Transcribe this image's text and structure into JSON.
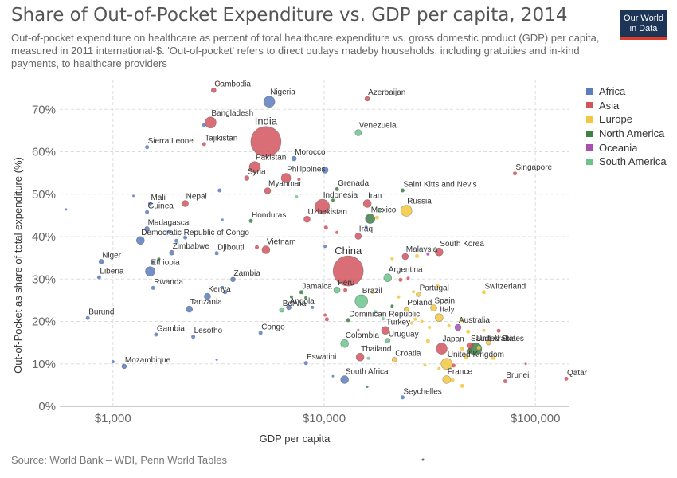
{
  "header": {
    "title": "Share of Out-of-Pocket Expenditure vs. GDP per capita, 2014",
    "subtitle": "Out-of-pocket expenditure on healthcare as percent of total healthcare expenditure vs. gross domestic product (GDP) per capita, measured in 2011 international-$. 'Out-of-pocket' refers to direct outlays madeby households, including gratuities and in-kind payments, to healthcare providers",
    "logo_line1": "Our World",
    "logo_line2": "in Data"
  },
  "footer": {
    "source": "Source: World Bank – WDI, Penn World Tables"
  },
  "colors": {
    "Africa": "#5b7cc0",
    "Asia": "#d2555e",
    "Europe": "#f4c53f",
    "North America": "#3f7f48",
    "Oceania": "#a94fb0",
    "South America": "#6cc48b"
  },
  "chart_data": {
    "type": "scatter",
    "xlabel": "GDP per capita",
    "ylabel": "Out-of-Pocket as share of total expenditure (%)",
    "xscale": "log",
    "xlim": [
      560,
      145000
    ],
    "ylim": [
      0,
      77
    ],
    "xticks": [
      {
        "v": 1000,
        "label": "$1,000"
      },
      {
        "v": 10000,
        "label": "$10,000"
      },
      {
        "v": 100000,
        "label": "$100,000"
      }
    ],
    "yticks": [
      {
        "v": 0,
        "label": "0%"
      },
      {
        "v": 10,
        "label": "10%"
      },
      {
        "v": 20,
        "label": "20%"
      },
      {
        "v": 30,
        "label": "30%"
      },
      {
        "v": 40,
        "label": "40%"
      },
      {
        "v": 50,
        "label": "50%"
      },
      {
        "v": 60,
        "label": "60%"
      },
      {
        "v": 70,
        "label": "70%"
      }
    ],
    "grid": true,
    "legend_position": "right",
    "legend": [
      "Africa",
      "Asia",
      "Europe",
      "North America",
      "Oceania",
      "South America"
    ],
    "points": [
      {
        "label": "Cambodia",
        "x": 3000,
        "y": 74.5,
        "r": 3,
        "region": "Asia"
      },
      {
        "label": "Nigeria",
        "x": 5500,
        "y": 71.8,
        "r": 7,
        "region": "Africa"
      },
      {
        "label": "Azerbaijan",
        "x": 16000,
        "y": 72.5,
        "r": 3,
        "region": "Asia"
      },
      {
        "label": "Bangladesh",
        "x": 2900,
        "y": 66.9,
        "r": 7,
        "region": "Asia"
      },
      {
        "label": "India",
        "x": 5300,
        "y": 62.4,
        "r": 19,
        "region": "Asia"
      },
      {
        "label": "Venezuela",
        "x": 14500,
        "y": 64.5,
        "r": 4,
        "region": "South America"
      },
      {
        "label": "Sierra Leone",
        "x": 1450,
        "y": 61.1,
        "r": 2.5,
        "region": "Africa"
      },
      {
        "label": "Tajikistan",
        "x": 2700,
        "y": 61.8,
        "r": 2.5,
        "region": "Asia"
      },
      {
        "label": "Morocco",
        "x": 7200,
        "y": 58.4,
        "r": 3,
        "region": "Africa"
      },
      {
        "label": "Pakistan",
        "x": 4700,
        "y": 56.4,
        "r": 7,
        "region": "Asia"
      },
      {
        "label": "Syria",
        "x": 4300,
        "y": 53.8,
        "r": 3,
        "region": "Asia"
      },
      {
        "label": "Philippines",
        "x": 6600,
        "y": 53.8,
        "r": 6,
        "region": "Asia"
      },
      {
        "label": "Singapore",
        "x": 80000,
        "y": 54.9,
        "r": 2.5,
        "region": "Asia"
      },
      {
        "label": "Myanmar",
        "x": 5400,
        "y": 50.8,
        "r": 4,
        "region": "Asia"
      },
      {
        "label": "Grenada",
        "x": 11500,
        "y": 51.2,
        "r": 2.5,
        "region": "North America"
      },
      {
        "label": "Saint Kitts and Nevis",
        "x": 23500,
        "y": 50.9,
        "r": 2.5,
        "region": "North America"
      },
      {
        "label": "Indonesia",
        "x": 9800,
        "y": 47.1,
        "r": 9,
        "region": "Asia"
      },
      {
        "label": "Iran",
        "x": 16000,
        "y": 47.8,
        "r": 5,
        "region": "Asia"
      },
      {
        "label": "Mali",
        "x": 1500,
        "y": 47.8,
        "r": 2.5,
        "region": "Africa"
      },
      {
        "label": "Nepal",
        "x": 2200,
        "y": 47.8,
        "r": 4,
        "region": "Asia"
      },
      {
        "label": "Guinea",
        "x": 1450,
        "y": 45.8,
        "r": 2.5,
        "region": "Africa"
      },
      {
        "label": "Russia",
        "x": 24500,
        "y": 46.1,
        "r": 7,
        "region": "Europe"
      },
      {
        "label": "Mexico",
        "x": 16500,
        "y": 44.2,
        "r": 6,
        "region": "North America"
      },
      {
        "label": "Uzbekistan",
        "x": 8300,
        "y": 44.1,
        "r": 4,
        "region": "Asia"
      },
      {
        "label": "Honduras",
        "x": 4500,
        "y": 43.7,
        "r": 2.5,
        "region": "North America"
      },
      {
        "label": "Madagascar",
        "x": 1450,
        "y": 41.8,
        "r": 3,
        "region": "Africa"
      },
      {
        "label": "Iraq",
        "x": 14500,
        "y": 40.1,
        "r": 4,
        "region": "Asia"
      },
      {
        "label": "Democratic Republic of Congo",
        "x": 1350,
        "y": 39.1,
        "r": 5,
        "region": "Africa"
      },
      {
        "label": "Zimbabwe",
        "x": 1900,
        "y": 36.2,
        "r": 3,
        "region": "Africa"
      },
      {
        "label": "Djibouti",
        "x": 3100,
        "y": 36.1,
        "r": 2.5,
        "region": "Africa"
      },
      {
        "label": "Vietnam",
        "x": 5300,
        "y": 36.9,
        "r": 5,
        "region": "Asia"
      },
      {
        "label": "China",
        "x": 13000,
        "y": 31.9,
        "r": 19,
        "region": "Asia"
      },
      {
        "label": "Malaysia",
        "x": 24200,
        "y": 35.3,
        "r": 4,
        "region": "Asia"
      },
      {
        "label": "South Korea",
        "x": 35000,
        "y": 36.4,
        "r": 5,
        "region": "Asia"
      },
      {
        "label": "Niger",
        "x": 880,
        "y": 34.1,
        "r": 3,
        "region": "Africa"
      },
      {
        "label": "Ethiopia",
        "x": 1500,
        "y": 31.8,
        "r": 6,
        "region": "Africa"
      },
      {
        "label": "Liberia",
        "x": 860,
        "y": 30.4,
        "r": 2.5,
        "region": "Africa"
      },
      {
        "label": "Zambia",
        "x": 3700,
        "y": 29.9,
        "r": 3,
        "region": "Africa"
      },
      {
        "label": "Argentina",
        "x": 20000,
        "y": 30.3,
        "r": 5,
        "region": "South America"
      },
      {
        "label": "Rwanda",
        "x": 1550,
        "y": 27.9,
        "r": 2.5,
        "region": "Africa"
      },
      {
        "label": "Jamaica",
        "x": 7800,
        "y": 26.9,
        "r": 2.5,
        "region": "North America"
      },
      {
        "label": "Peru",
        "x": 11500,
        "y": 27.4,
        "r": 4,
        "region": "South America"
      },
      {
        "label": "Portugal",
        "x": 28000,
        "y": 26.4,
        "r": 3,
        "region": "Europe"
      },
      {
        "label": "Switzerland",
        "x": 57000,
        "y": 26.9,
        "r": 2.5,
        "region": "Europe"
      },
      {
        "label": "Kenya",
        "x": 2800,
        "y": 25.9,
        "r": 4,
        "region": "Africa"
      },
      {
        "label": "Brazil",
        "x": 15000,
        "y": 24.8,
        "r": 8,
        "region": "South America"
      },
      {
        "label": "Tanzania",
        "x": 2300,
        "y": 22.9,
        "r": 4,
        "region": "Africa"
      },
      {
        "label": "Angola",
        "x": 6800,
        "y": 23.3,
        "r": 3,
        "region": "Africa"
      },
      {
        "label": "Bolivia",
        "x": 6300,
        "y": 22.7,
        "r": 3,
        "region": "South America"
      },
      {
        "label": "Poland",
        "x": 24500,
        "y": 22.9,
        "r": 3,
        "region": "Europe"
      },
      {
        "label": "Spain",
        "x": 33000,
        "y": 23.2,
        "r": 4,
        "region": "Europe"
      },
      {
        "label": "Italy",
        "x": 35000,
        "y": 20.9,
        "r": 5,
        "region": "Europe"
      },
      {
        "label": "Dominican Republic",
        "x": 13000,
        "y": 20.3,
        "r": 2.5,
        "region": "North America"
      },
      {
        "label": "Burundi",
        "x": 760,
        "y": 20.8,
        "r": 2.5,
        "region": "Africa"
      },
      {
        "label": "Australia",
        "x": 43000,
        "y": 18.6,
        "r": 4,
        "region": "Oceania"
      },
      {
        "label": "Turkey",
        "x": 19500,
        "y": 17.9,
        "r": 5,
        "region": "Asia"
      },
      {
        "label": "Gambia",
        "x": 1600,
        "y": 16.9,
        "r": 2.5,
        "region": "Africa"
      },
      {
        "label": "Lesotho",
        "x": 2400,
        "y": 16.4,
        "r": 2.5,
        "region": "Africa"
      },
      {
        "label": "Congo",
        "x": 5000,
        "y": 17.3,
        "r": 2.5,
        "region": "Africa"
      },
      {
        "label": "Uruguay",
        "x": 20000,
        "y": 15.5,
        "r": 3,
        "region": "South America"
      },
      {
        "label": "Colombia",
        "x": 12500,
        "y": 14.8,
        "r": 5,
        "region": "South America"
      },
      {
        "label": "Saudi Arabia",
        "x": 49000,
        "y": 14.3,
        "r": 4,
        "region": "Asia"
      },
      {
        "label": "Japan",
        "x": 36000,
        "y": 13.6,
        "r": 7,
        "region": "Asia"
      },
      {
        "label": "United States",
        "x": 52000,
        "y": 13.5,
        "r": 8,
        "region": "North America"
      },
      {
        "label": "Thailand",
        "x": 14800,
        "y": 11.6,
        "r": 5,
        "region": "Asia"
      },
      {
        "label": "Croatia",
        "x": 21500,
        "y": 11.0,
        "r": 3,
        "region": "Europe"
      },
      {
        "label": "United Kingdom",
        "x": 38000,
        "y": 10.0,
        "r": 7,
        "region": "Europe"
      },
      {
        "label": "Mozambique",
        "x": 1130,
        "y": 9.4,
        "r": 3,
        "region": "Africa"
      },
      {
        "label": "Eswatini",
        "x": 8200,
        "y": 10.2,
        "r": 2.5,
        "region": "Africa"
      },
      {
        "label": "South Africa",
        "x": 12500,
        "y": 6.3,
        "r": 5,
        "region": "Africa"
      },
      {
        "label": "France",
        "x": 38000,
        "y": 6.3,
        "r": 5,
        "region": "Europe"
      },
      {
        "label": "Qatar",
        "x": 140000,
        "y": 6.5,
        "r": 2.5,
        "region": "Asia"
      },
      {
        "label": "Brunei",
        "x": 72000,
        "y": 5.9,
        "r": 2.5,
        "region": "Asia"
      },
      {
        "label": "Seychelles",
        "x": 23500,
        "y": 2.1,
        "r": 2.5,
        "region": "Africa"
      },
      {
        "label": "",
        "x": 3200,
        "y": 76.0,
        "r": 1.5,
        "region": "Asia"
      },
      {
        "label": "",
        "x": 2700,
        "y": 66.3,
        "r": 2.5,
        "region": "Africa"
      },
      {
        "label": "",
        "x": 10100,
        "y": 55.7,
        "r": 4,
        "region": "Africa"
      },
      {
        "label": "",
        "x": 7600,
        "y": 53.5,
        "r": 2,
        "region": "Asia"
      },
      {
        "label": "",
        "x": 3200,
        "y": 50.9,
        "r": 2.5,
        "region": "Africa"
      },
      {
        "label": "",
        "x": 1250,
        "y": 49.6,
        "r": 1.5,
        "region": "Africa"
      },
      {
        "label": "",
        "x": 600,
        "y": 46.4,
        "r": 1.5,
        "region": "Africa"
      },
      {
        "label": "",
        "x": 7400,
        "y": 49.4,
        "r": 2,
        "region": "South America"
      },
      {
        "label": "",
        "x": 11000,
        "y": 48.6,
        "r": 2,
        "region": "North America"
      },
      {
        "label": "",
        "x": 18200,
        "y": 46.2,
        "r": 2.5,
        "region": "South America"
      },
      {
        "label": "",
        "x": 17800,
        "y": 44.5,
        "r": 2.5,
        "region": "Europe"
      },
      {
        "label": "",
        "x": 3300,
        "y": 44.0,
        "r": 1.5,
        "region": "Africa"
      },
      {
        "label": "",
        "x": 10200,
        "y": 42.1,
        "r": 2.5,
        "region": "Asia"
      },
      {
        "label": "",
        "x": 11500,
        "y": 41.0,
        "r": 2,
        "region": "Asia"
      },
      {
        "label": "",
        "x": 15800,
        "y": 42.2,
        "r": 2,
        "region": "Africa"
      },
      {
        "label": "",
        "x": 1850,
        "y": 41.1,
        "r": 2.5,
        "region": "Africa"
      },
      {
        "label": "",
        "x": 2200,
        "y": 39.8,
        "r": 2.5,
        "region": "Africa"
      },
      {
        "label": "",
        "x": 2000,
        "y": 39.0,
        "r": 2.5,
        "region": "Africa"
      },
      {
        "label": "",
        "x": 4800,
        "y": 37.5,
        "r": 2.5,
        "region": "Asia"
      },
      {
        "label": "",
        "x": 10100,
        "y": 37.7,
        "r": 2,
        "region": "Africa"
      },
      {
        "label": "",
        "x": 21000,
        "y": 34.8,
        "r": 2,
        "region": "Europe"
      },
      {
        "label": "",
        "x": 27500,
        "y": 35.4,
        "r": 2.5,
        "region": "Europe"
      },
      {
        "label": "",
        "x": 31000,
        "y": 35.9,
        "r": 2,
        "region": "Oceania"
      },
      {
        "label": "",
        "x": 1650,
        "y": 34.7,
        "r": 2,
        "region": "North America"
      },
      {
        "label": "",
        "x": 1550,
        "y": 33.8,
        "r": 2,
        "region": "Africa"
      },
      {
        "label": "",
        "x": 3300,
        "y": 28.0,
        "r": 2,
        "region": "Africa"
      },
      {
        "label": "",
        "x": 3400,
        "y": 26.9,
        "r": 2.5,
        "region": "Africa"
      },
      {
        "label": "",
        "x": 12600,
        "y": 27.4,
        "r": 2.5,
        "region": "Asia"
      },
      {
        "label": "",
        "x": 17000,
        "y": 26.8,
        "r": 2,
        "region": "Europe"
      },
      {
        "label": "",
        "x": 23000,
        "y": 29.8,
        "r": 2.5,
        "region": "Asia"
      },
      {
        "label": "",
        "x": 25000,
        "y": 30.2,
        "r": 2,
        "region": "Asia"
      },
      {
        "label": "",
        "x": 26500,
        "y": 27.0,
        "r": 2,
        "region": "Europe"
      },
      {
        "label": "",
        "x": 22500,
        "y": 25.8,
        "r": 2,
        "region": "Europe"
      },
      {
        "label": "",
        "x": 34500,
        "y": 28.4,
        "r": 2,
        "region": "Europe"
      },
      {
        "label": "",
        "x": 7000,
        "y": 25.8,
        "r": 2,
        "region": "North America"
      },
      {
        "label": "",
        "x": 8200,
        "y": 25.6,
        "r": 2,
        "region": "North America"
      },
      {
        "label": "",
        "x": 10100,
        "y": 21.5,
        "r": 2,
        "region": "Asia"
      },
      {
        "label": "",
        "x": 10300,
        "y": 20.5,
        "r": 2.5,
        "region": "Asia"
      },
      {
        "label": "",
        "x": 8800,
        "y": 23.3,
        "r": 2,
        "region": "Africa"
      },
      {
        "label": "",
        "x": 17500,
        "y": 22.3,
        "r": 2,
        "region": "South America"
      },
      {
        "label": "",
        "x": 21000,
        "y": 23.6,
        "r": 2,
        "region": "North America"
      },
      {
        "label": "",
        "x": 19000,
        "y": 20.6,
        "r": 2,
        "region": "South America"
      },
      {
        "label": "",
        "x": 27000,
        "y": 20.5,
        "r": 2,
        "region": "Europe"
      },
      {
        "label": "",
        "x": 29000,
        "y": 20.0,
        "r": 2,
        "region": "Europe"
      },
      {
        "label": "",
        "x": 26000,
        "y": 19.6,
        "r": 2,
        "region": "Europe"
      },
      {
        "label": "",
        "x": 31500,
        "y": 18.6,
        "r": 2,
        "region": "Europe"
      },
      {
        "label": "",
        "x": 44500,
        "y": 20.2,
        "r": 2,
        "region": "Europe"
      },
      {
        "label": "",
        "x": 39000,
        "y": 19.0,
        "r": 2,
        "region": "Europe"
      },
      {
        "label": "",
        "x": 48000,
        "y": 17.6,
        "r": 2.5,
        "region": "Europe"
      },
      {
        "label": "",
        "x": 57000,
        "y": 17.9,
        "r": 2,
        "region": "Europe"
      },
      {
        "label": "",
        "x": 67000,
        "y": 17.8,
        "r": 2.5,
        "region": "Asia"
      },
      {
        "label": "",
        "x": 31000,
        "y": 15.4,
        "r": 2.5,
        "region": "Europe"
      },
      {
        "label": "",
        "x": 45000,
        "y": 13.6,
        "r": 2.5,
        "region": "Europe"
      },
      {
        "label": "",
        "x": 48500,
        "y": 13.0,
        "r": 3,
        "region": "North America"
      },
      {
        "label": "",
        "x": 60000,
        "y": 15.0,
        "r": 3,
        "region": "Europe"
      },
      {
        "label": "",
        "x": 54000,
        "y": 13.8,
        "r": 2.5,
        "region": "Europe"
      },
      {
        "label": "",
        "x": 47000,
        "y": 11.6,
        "r": 2.5,
        "region": "Europe"
      },
      {
        "label": "",
        "x": 63000,
        "y": 11.4,
        "r": 2.5,
        "region": "Europe"
      },
      {
        "label": "",
        "x": 41000,
        "y": 9.6,
        "r": 2.5,
        "region": "Asia"
      },
      {
        "label": "",
        "x": 30000,
        "y": 9.7,
        "r": 2,
        "region": "Europe"
      },
      {
        "label": "",
        "x": 35000,
        "y": 8.9,
        "r": 2,
        "region": "Europe"
      },
      {
        "label": "",
        "x": 90000,
        "y": 10.0,
        "r": 1.5,
        "region": "Asia"
      },
      {
        "label": "",
        "x": 40500,
        "y": 6.2,
        "r": 2.5,
        "region": "Europe"
      },
      {
        "label": "",
        "x": 45000,
        "y": 4.8,
        "r": 2.5,
        "region": "Europe"
      },
      {
        "label": "",
        "x": 16000,
        "y": 4.6,
        "r": 1.5,
        "region": "North America"
      },
      {
        "label": "",
        "x": 11000,
        "y": 7.1,
        "r": 1.5,
        "region": "Africa"
      },
      {
        "label": "",
        "x": 16200,
        "y": 11.3,
        "r": 2,
        "region": "South America"
      },
      {
        "label": "",
        "x": 14500,
        "y": 18.0,
        "r": 1.5,
        "region": "Asia"
      },
      {
        "label": "",
        "x": 1000,
        "y": 10.5,
        "r": 2,
        "region": "Africa"
      },
      {
        "label": "",
        "x": 3100,
        "y": 11.0,
        "r": 1.5,
        "region": "Africa"
      }
    ]
  }
}
